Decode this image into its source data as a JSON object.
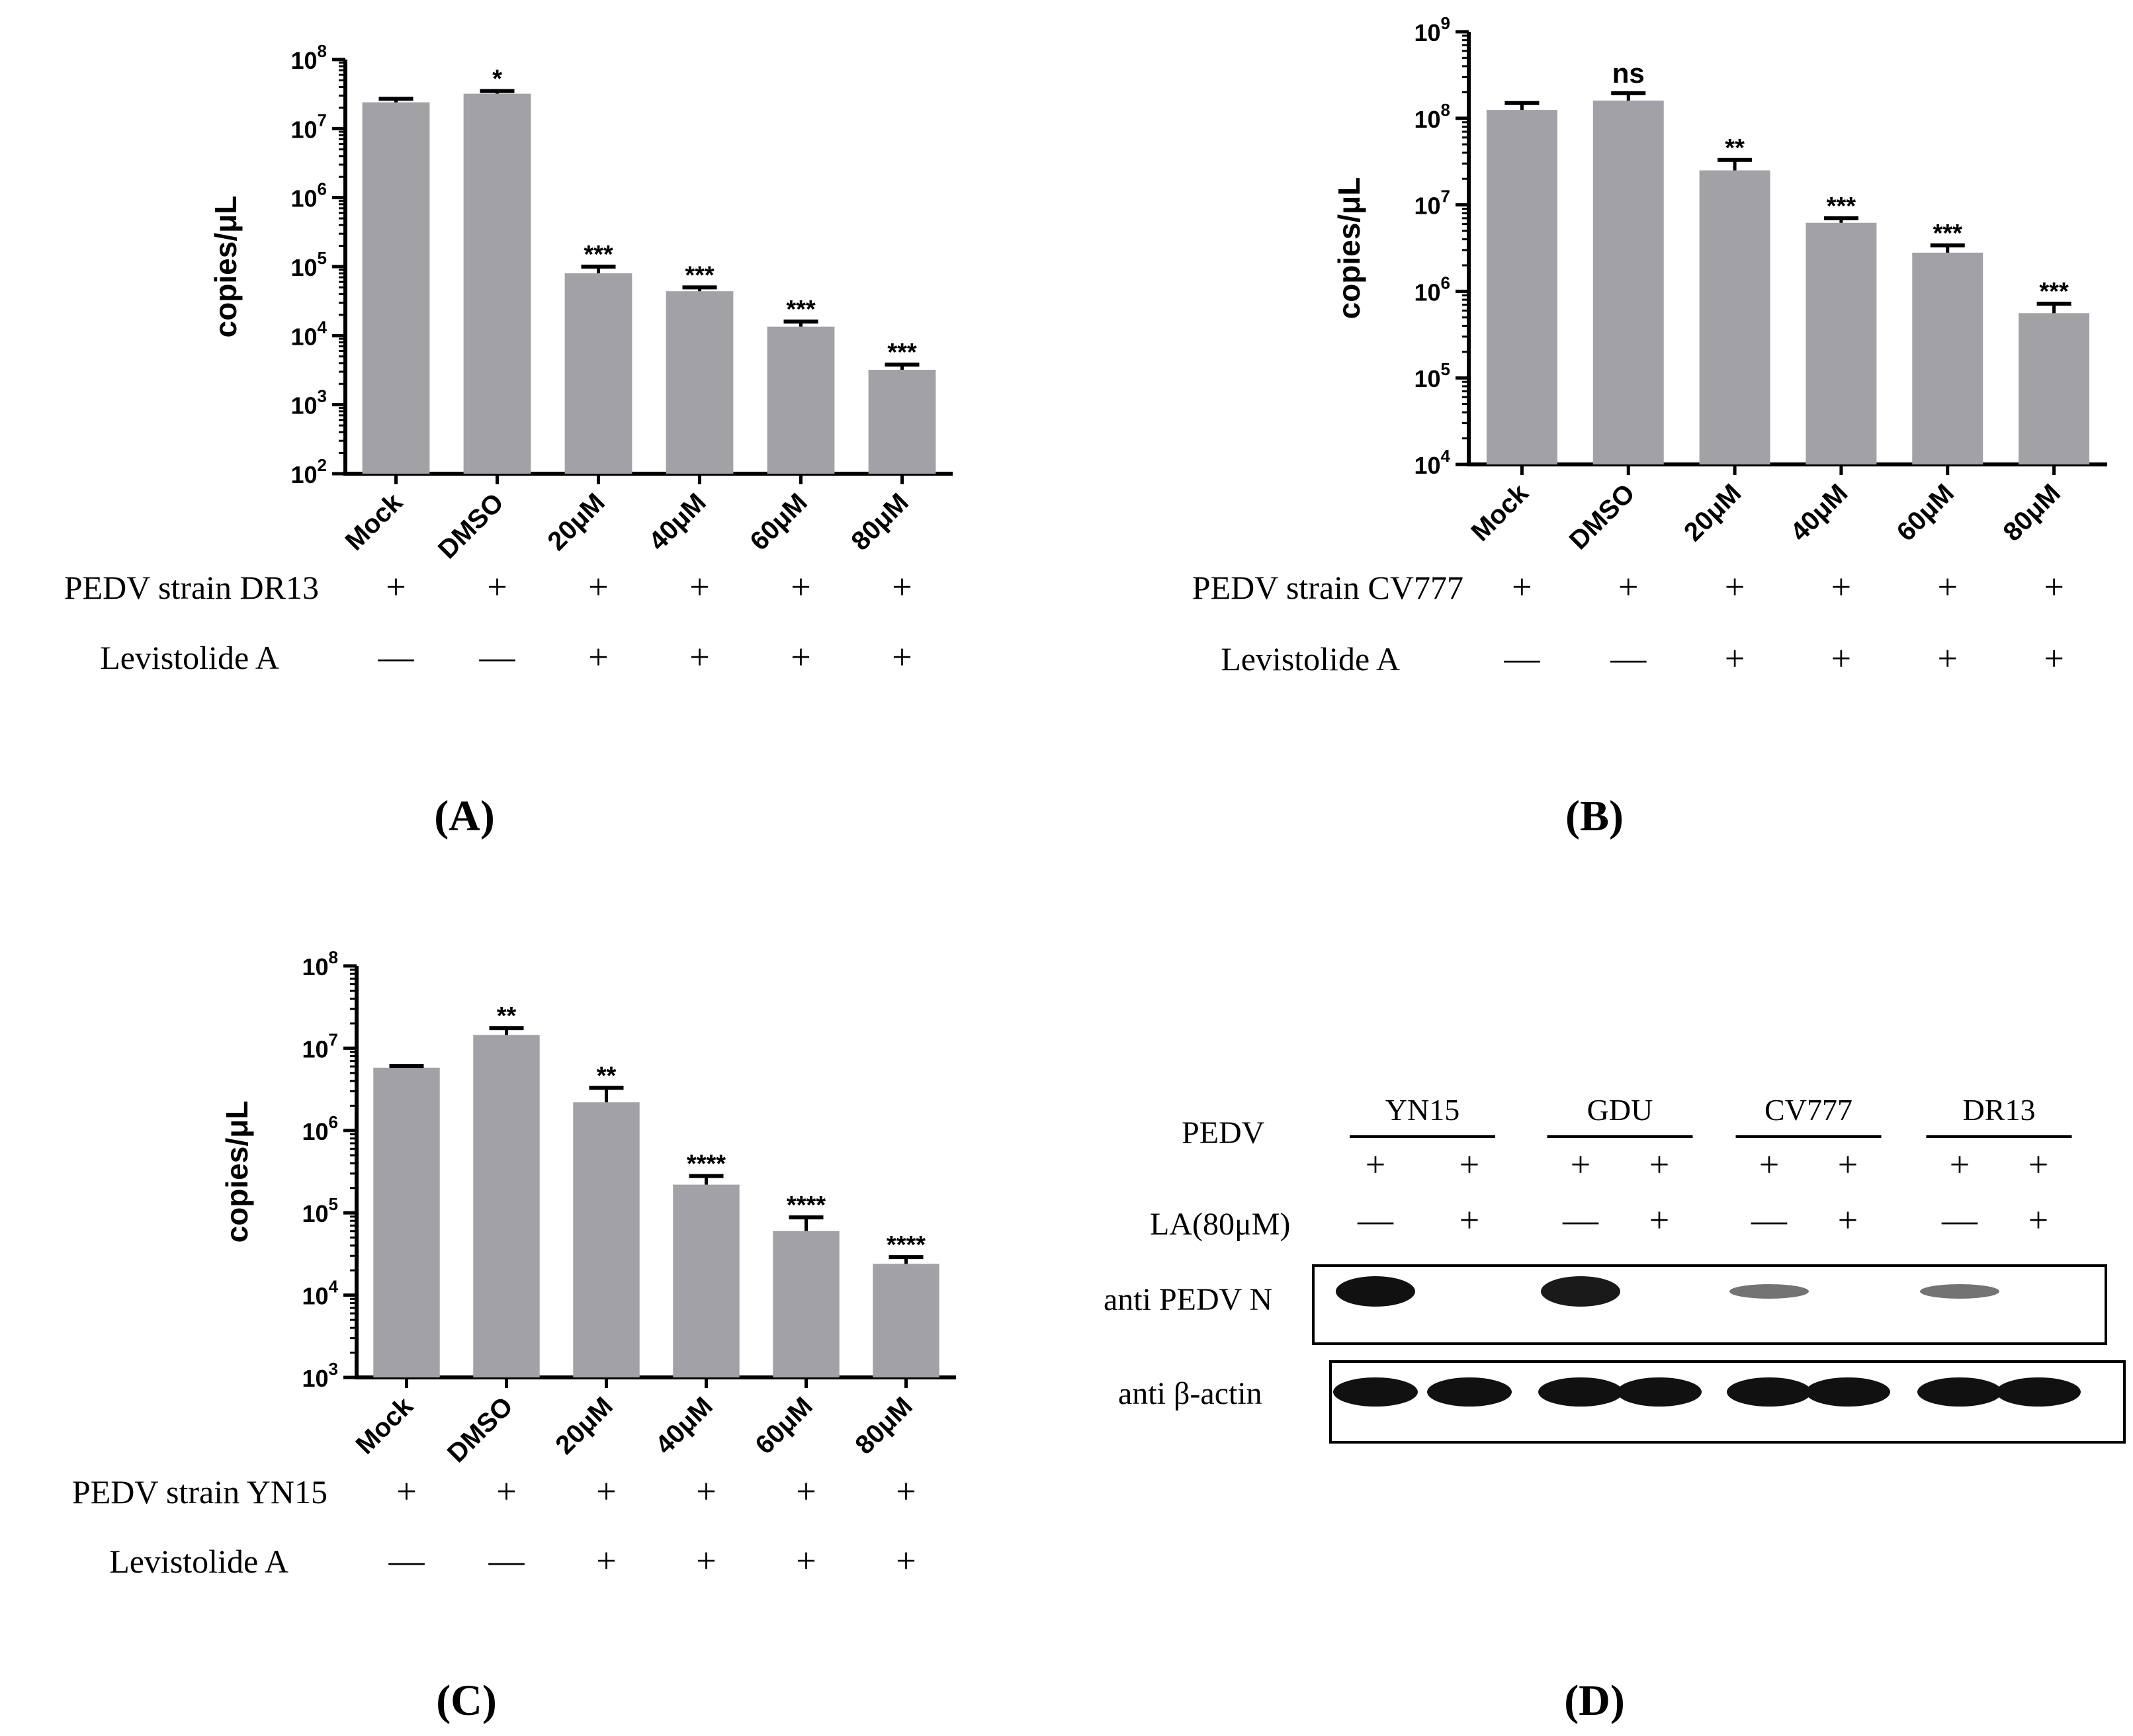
{
  "chart_data": [
    {
      "id": "A",
      "type": "bar",
      "scale": "log",
      "panel_label": "(A)",
      "ylabel": "copies/μL",
      "ylim_exp": [
        2,
        8
      ],
      "categories": [
        "Mock",
        "DMSO",
        "20μM",
        "40μM",
        "60μM",
        "80μM"
      ],
      "values": [
        24000000,
        32000000,
        80000,
        44000,
        13500,
        3200
      ],
      "errors": [
        27000000,
        35000000,
        100000,
        50000,
        16000,
        3800
      ],
      "significance": [
        "",
        "*",
        "***",
        "***",
        "***",
        "***"
      ],
      "condition_rows": [
        {
          "label": "PEDV strain DR13",
          "marks": [
            "+",
            "+",
            "+",
            "+",
            "+",
            "+"
          ]
        },
        {
          "label": "Levistolide A",
          "marks": [
            "—",
            "—",
            "+",
            "+",
            "+",
            "+"
          ]
        }
      ]
    },
    {
      "id": "B",
      "type": "bar",
      "scale": "log",
      "panel_label": "(B)",
      "ylabel": "copies/μL",
      "ylim_exp": [
        4,
        9
      ],
      "categories": [
        "Mock",
        "DMSO",
        "20μM",
        "40μM",
        "60μM",
        "80μM"
      ],
      "values": [
        125000000,
        160000000,
        25000000,
        6200000,
        2800000,
        560000
      ],
      "errors": [
        150000000,
        195000000,
        33000000,
        7000000,
        3400000,
        720000
      ],
      "significance": [
        "",
        "ns",
        "**",
        "***",
        "***",
        "***"
      ],
      "condition_rows": [
        {
          "label": "PEDV strain CV777",
          "marks": [
            "+",
            "+",
            "+",
            "+",
            "+",
            "+"
          ]
        },
        {
          "label": "Levistolide A",
          "marks": [
            "—",
            "—",
            "+",
            "+",
            "+",
            "+"
          ]
        }
      ]
    },
    {
      "id": "C",
      "type": "bar",
      "scale": "log",
      "panel_label": "(C)",
      "ylabel": "copies/μL",
      "ylim_exp": [
        3,
        8
      ],
      "categories": [
        "Mock",
        "DMSO",
        "20μM",
        "40μM",
        "60μM",
        "80μM"
      ],
      "values": [
        5800000,
        14500000,
        2200000,
        220000,
        60000,
        24000
      ],
      "errors": [
        6100000,
        17500000,
        3300000,
        280000,
        88000,
        29000
      ],
      "significance": [
        "",
        "**",
        "**",
        "****",
        "****",
        "****"
      ],
      "condition_rows": [
        {
          "label": "PEDV strain YN15",
          "marks": [
            "+",
            "+",
            "+",
            "+",
            "+",
            "+"
          ]
        },
        {
          "label": "Levistolide A",
          "marks": [
            "—",
            "—",
            "+",
            "+",
            "+",
            "+"
          ]
        }
      ]
    }
  ],
  "western_blot": {
    "panel_label": "(D)",
    "row_label_pedv": "PEDV",
    "row_label_la": "LA(80μM)",
    "strains": [
      "YN15",
      "GDU",
      "CV777",
      "DR13"
    ],
    "pedv_marks": [
      "+",
      "+",
      "+",
      "+",
      "+",
      "+",
      "+",
      "+"
    ],
    "la_marks": [
      "—",
      "+",
      "—",
      "+",
      "—",
      "+",
      "—",
      "+"
    ],
    "blot_labels": [
      "anti PEDV N",
      "anti β-actin"
    ],
    "pedv_n_band_intensity": [
      1.0,
      0,
      0.95,
      0,
      0.45,
      0,
      0.45,
      0
    ],
    "actin_band_intensity": [
      1,
      1,
      1,
      1,
      1,
      1,
      1,
      1
    ]
  }
}
